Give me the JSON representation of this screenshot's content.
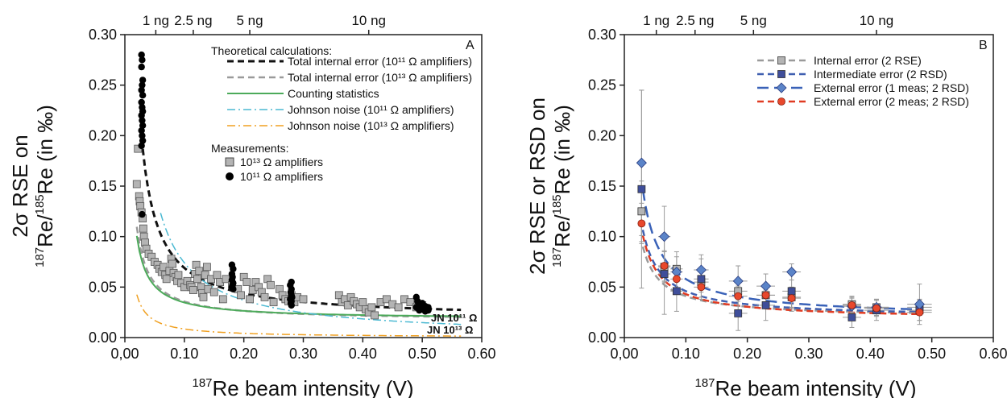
{
  "chart_data": [
    {
      "type": "scatter",
      "panel_label": "A",
      "xlabel_sup": "187",
      "xlabel_main": "Re beam intensity (V)",
      "ylabel_line1": "2σ RSE on",
      "ylabel_sup1": "187",
      "ylabel_mid": "Re/",
      "ylabel_sup2": "185",
      "ylabel_end": "Re (in ‰)",
      "xlim": [
        0,
        0.6
      ],
      "ylim": [
        0,
        0.3
      ],
      "x_ticks": [
        "0,00",
        "0.10",
        "0.20",
        "0.30",
        "0.40",
        "0.50",
        "0.60"
      ],
      "x_tick_values": [
        0,
        0.1,
        0.2,
        0.3,
        0.4,
        0.5,
        0.6
      ],
      "y_ticks": [
        "0.00",
        "0.05",
        "0.10",
        "0.15",
        "0.20",
        "0.25",
        "0.30"
      ],
      "y_tick_values": [
        0,
        0.05,
        0.1,
        0.15,
        0.2,
        0.25,
        0.3
      ],
      "top_axis": {
        "labels": [
          "1 ng",
          "2.5 ng",
          "5 ng",
          "10 ng"
        ],
        "positions": [
          0.052,
          0.115,
          0.21,
          0.41
        ]
      },
      "legend_theory_title": "Theoretical calculations:",
      "legend_measure_title": "Measurements:",
      "curves": [
        {
          "name": "Total internal error (10¹¹ Ω amplifiers)",
          "color": "#111111",
          "dash": "8,5",
          "width": 3,
          "k": 0.00505,
          "c": 0.0185,
          "x_start": 0.03,
          "x_end": 0.565
        },
        {
          "name": "Total internal error (10¹³ Ω amplifiers)",
          "color": "#9a9a9a",
          "dash": "8,5",
          "width": 2.5,
          "k": 0.00185,
          "c": 0.0172,
          "x_start": 0.02,
          "x_end": 0.565
        },
        {
          "name": "Counting statistics",
          "color": "#4caa5a",
          "dash": "",
          "width": 2,
          "k": 0.00165,
          "c": 0.0182,
          "x_start": 0.02,
          "x_end": 0.565
        },
        {
          "name": "Johnson noise (10¹¹ Ω amplifiers)",
          "color": "#4bb9d2",
          "dash": "10,4,2,4",
          "width": 1.5,
          "k": 0.0074,
          "c": 0.0,
          "x_start": 0.06,
          "x_end": 0.565
        },
        {
          "name": "Johnson noise (10¹³ Ω amplifiers)",
          "color": "#f0a020",
          "dash": "10,4,2,4",
          "width": 1.5,
          "k": 0.00085,
          "c": 0.0,
          "x_start": 0.02,
          "x_end": 0.565
        }
      ],
      "curve_labels": [
        {
          "text": "JN 10¹¹ Ω",
          "color": "#4bb9d2"
        },
        {
          "text": "JN 10¹³ Ω",
          "color": "#f0a020"
        }
      ],
      "series": [
        {
          "name": "10¹³ Ω amplifiers",
          "marker": "square",
          "color": "#b4b4b4",
          "points": [
            [
              0.02,
              0.152
            ],
            [
              0.022,
              0.187
            ],
            [
              0.024,
              0.14
            ],
            [
              0.025,
              0.135
            ],
            [
              0.026,
              0.13
            ],
            [
              0.028,
              0.124
            ],
            [
              0.03,
              0.118
            ],
            [
              0.031,
              0.108
            ],
            [
              0.032,
              0.1
            ],
            [
              0.034,
              0.094
            ],
            [
              0.036,
              0.088
            ],
            [
              0.04,
              0.083
            ],
            [
              0.045,
              0.08
            ],
            [
              0.05,
              0.075
            ],
            [
              0.055,
              0.072
            ],
            [
              0.058,
              0.068
            ],
            [
              0.062,
              0.065
            ],
            [
              0.065,
              0.07
            ],
            [
              0.068,
              0.062
            ],
            [
              0.07,
              0.058
            ],
            [
              0.075,
              0.066
            ],
            [
              0.078,
              0.078
            ],
            [
              0.08,
              0.073
            ],
            [
              0.082,
              0.064
            ],
            [
              0.085,
              0.06
            ],
            [
              0.088,
              0.056
            ],
            [
              0.09,
              0.062
            ],
            [
              0.095,
              0.054
            ],
            [
              0.1,
              0.05
            ],
            [
              0.105,
              0.056
            ],
            [
              0.11,
              0.052
            ],
            [
              0.112,
              0.05
            ],
            [
              0.115,
              0.047
            ],
            [
              0.118,
              0.063
            ],
            [
              0.12,
              0.072
            ],
            [
              0.122,
              0.058
            ],
            [
              0.125,
              0.066
            ],
            [
              0.128,
              0.05
            ],
            [
              0.13,
              0.044
            ],
            [
              0.132,
              0.04
            ],
            [
              0.135,
              0.062
            ],
            [
              0.138,
              0.07
            ],
            [
              0.14,
              0.048
            ],
            [
              0.145,
              0.058
            ],
            [
              0.15,
              0.045
            ],
            [
              0.155,
              0.062
            ],
            [
              0.16,
              0.055
            ],
            [
              0.165,
              0.038
            ],
            [
              0.17,
              0.058
            ],
            [
              0.18,
              0.052
            ],
            [
              0.19,
              0.048
            ],
            [
              0.195,
              0.042
            ],
            [
              0.2,
              0.06
            ],
            [
              0.205,
              0.055
            ],
            [
              0.21,
              0.038
            ],
            [
              0.215,
              0.047
            ],
            [
              0.22,
              0.055
            ],
            [
              0.225,
              0.05
            ],
            [
              0.23,
              0.045
            ],
            [
              0.235,
              0.04
            ],
            [
              0.24,
              0.058
            ],
            [
              0.245,
              0.052
            ],
            [
              0.25,
              0.035
            ],
            [
              0.26,
              0.048
            ],
            [
              0.265,
              0.042
            ],
            [
              0.27,
              0.038
            ],
            [
              0.275,
              0.036
            ],
            [
              0.28,
              0.042
            ],
            [
              0.285,
              0.035
            ],
            [
              0.29,
              0.04
            ],
            [
              0.3,
              0.038
            ],
            [
              0.36,
              0.042
            ],
            [
              0.365,
              0.035
            ],
            [
              0.37,
              0.038
            ],
            [
              0.375,
              0.032
            ],
            [
              0.38,
              0.04
            ],
            [
              0.385,
              0.036
            ],
            [
              0.39,
              0.033
            ],
            [
              0.395,
              0.03
            ],
            [
              0.4,
              0.035
            ],
            [
              0.405,
              0.028
            ],
            [
              0.41,
              0.025
            ],
            [
              0.415,
              0.03
            ],
            [
              0.42,
              0.022
            ],
            [
              0.43,
              0.035
            ],
            [
              0.44,
              0.038
            ],
            [
              0.45,
              0.033
            ],
            [
              0.46,
              0.03
            ],
            [
              0.47,
              0.038
            ],
            [
              0.48,
              0.035
            ],
            [
              0.49,
              0.03
            ],
            [
              0.5,
              0.032
            ]
          ]
        },
        {
          "name": "10¹¹ Ω amplifiers",
          "marker": "circle",
          "color": "#000000",
          "points": [
            [
              0.028,
              0.28
            ],
            [
              0.029,
              0.275
            ],
            [
              0.028,
              0.268
            ],
            [
              0.03,
              0.255
            ],
            [
              0.029,
              0.25
            ],
            [
              0.028,
              0.245
            ],
            [
              0.03,
              0.24
            ],
            [
              0.028,
              0.233
            ],
            [
              0.029,
              0.228
            ],
            [
              0.03,
              0.224
            ],
            [
              0.028,
              0.22
            ],
            [
              0.029,
              0.215
            ],
            [
              0.03,
              0.21
            ],
            [
              0.028,
              0.205
            ],
            [
              0.029,
              0.2
            ],
            [
              0.03,
              0.195
            ],
            [
              0.028,
              0.19
            ],
            [
              0.029,
              0.122
            ],
            [
              0.18,
              0.072
            ],
            [
              0.182,
              0.068
            ],
            [
              0.18,
              0.063
            ],
            [
              0.181,
              0.06
            ],
            [
              0.18,
              0.057
            ],
            [
              0.182,
              0.054
            ],
            [
              0.181,
              0.052
            ],
            [
              0.18,
              0.05
            ],
            [
              0.182,
              0.048
            ],
            [
              0.28,
              0.055
            ],
            [
              0.278,
              0.052
            ],
            [
              0.28,
              0.048
            ],
            [
              0.279,
              0.045
            ],
            [
              0.28,
              0.042
            ],
            [
              0.281,
              0.04
            ],
            [
              0.278,
              0.038
            ],
            [
              0.28,
              0.036
            ],
            [
              0.279,
              0.034
            ],
            [
              0.28,
              0.032
            ],
            [
              0.49,
              0.04
            ],
            [
              0.492,
              0.036
            ],
            [
              0.495,
              0.033
            ],
            [
              0.49,
              0.03
            ],
            [
              0.5,
              0.034
            ],
            [
              0.505,
              0.031
            ],
            [
              0.5,
              0.028
            ],
            [
              0.495,
              0.027
            ],
            [
              0.505,
              0.026
            ],
            [
              0.51,
              0.03
            ],
            [
              0.51,
              0.027
            ]
          ]
        }
      ]
    },
    {
      "type": "scatter",
      "panel_label": "B",
      "xlabel_sup": "187",
      "xlabel_main": "Re beam intensity (V)",
      "ylabel_line1": "2σ RSE or RSD on",
      "ylabel_sup1": "187",
      "ylabel_mid": "Re/",
      "ylabel_sup2": "185",
      "ylabel_end": "Re (in ‰)",
      "xlim": [
        0,
        0.6
      ],
      "ylim": [
        0,
        0.3
      ],
      "x_ticks": [
        "0,00",
        "0.10",
        "0.20",
        "0.30",
        "0.40",
        "0.50",
        "0.60"
      ],
      "x_tick_values": [
        0,
        0.1,
        0.2,
        0.3,
        0.4,
        0.5,
        0.6
      ],
      "y_ticks": [
        "0.00",
        "0.05",
        "0.10",
        "0.15",
        "0.20",
        "0.25",
        "0.30"
      ],
      "y_tick_values": [
        0,
        0.05,
        0.1,
        0.15,
        0.2,
        0.25,
        0.3
      ],
      "top_axis": {
        "labels": [
          "1 ng",
          "2.5 ng",
          "5 ng",
          "10 ng"
        ],
        "positions": [
          0.052,
          0.115,
          0.21,
          0.41
        ]
      },
      "series": [
        {
          "name": "Internal error (2 RSE)",
          "marker": "square",
          "color": "#b4b4b4",
          "line_color": "#9a9a9a",
          "fit": {
            "k": 0.0021,
            "c": 0.02
          },
          "points": [
            [
              0.028,
              0.125
            ],
            [
              0.065,
              0.07
            ],
            [
              0.085,
              0.068
            ],
            [
              0.125,
              0.055
            ],
            [
              0.185,
              0.046
            ],
            [
              0.23,
              0.042
            ],
            [
              0.272,
              0.04
            ],
            [
              0.37,
              0.033
            ],
            [
              0.41,
              0.03
            ],
            [
              0.48,
              0.03
            ]
          ],
          "xerr": [
            0.004,
            0.01,
            0.01,
            0.012,
            0.015,
            0.015,
            0.015,
            0.015,
            0.02,
            0.02
          ],
          "yerr": [
            0.03,
            0.015,
            0.012,
            0.01,
            0.01,
            0.01,
            0.01,
            0.008,
            0.008,
            0.008
          ]
        },
        {
          "name": "Intermediate error (2 RSD)",
          "marker": "square",
          "color": "#3f4e9a",
          "line_color": "#3f5fb0",
          "fit": {
            "k": 0.0026,
            "c": 0.02
          },
          "points": [
            [
              0.028,
              0.147
            ],
            [
              0.065,
              0.063
            ],
            [
              0.085,
              0.046
            ],
            [
              0.125,
              0.058
            ],
            [
              0.185,
              0.024
            ],
            [
              0.23,
              0.032
            ],
            [
              0.272,
              0.046
            ],
            [
              0.37,
              0.02
            ],
            [
              0.41,
              0.027
            ],
            [
              0.48,
              0.027
            ]
          ],
          "xerr": [
            0.004,
            0.01,
            0.01,
            0.012,
            0.015,
            0.015,
            0.015,
            0.015,
            0.02,
            0.02
          ],
          "yerr": [
            0.098,
            0.04,
            0.02,
            0.02,
            0.017,
            0.015,
            0.02,
            0.01,
            0.01,
            0.01
          ]
        },
        {
          "name": "External error (1 meas; 2 RSD)",
          "marker": "diamond",
          "color": "#5b84c8",
          "line_color": "#3a62b8",
          "fit": {
            "k": 0.0038,
            "c": 0.02
          },
          "points": [
            [
              0.028,
              0.173
            ],
            [
              0.065,
              0.1
            ],
            [
              0.085,
              0.065
            ],
            [
              0.125,
              0.067
            ],
            [
              0.185,
              0.056
            ],
            [
              0.23,
              0.051
            ],
            [
              0.272,
              0.065
            ],
            [
              0.37,
              0.031
            ],
            [
              0.41,
              0.03
            ],
            [
              0.48,
              0.033
            ]
          ],
          "xerr": [
            0.004,
            0.01,
            0.01,
            0.012,
            0.015,
            0.015,
            0.015,
            0.015,
            0.02,
            0.02
          ],
          "yerr": [
            0.072,
            0.03,
            0.02,
            0.015,
            0.015,
            0.012,
            0.008,
            0.008,
            0.008,
            0.02
          ]
        },
        {
          "name": "External error (2 meas; 2 RSD)",
          "marker": "circle",
          "color": "#e8482c",
          "line_color": "#e03b22",
          "fit": {
            "k": 0.0025,
            "c": 0.018
          },
          "points": [
            [
              0.028,
              0.113
            ],
            [
              0.065,
              0.071
            ],
            [
              0.085,
              0.058
            ],
            [
              0.125,
              0.05
            ],
            [
              0.185,
              0.041
            ],
            [
              0.23,
              0.042
            ],
            [
              0.272,
              0.039
            ],
            [
              0.37,
              0.032
            ],
            [
              0.41,
              0.029
            ],
            [
              0.48,
              0.025
            ]
          ],
          "xerr": [
            0.004,
            0.01,
            0.01,
            0.012,
            0.015,
            0.015,
            0.015,
            0.015,
            0.02,
            0.02
          ],
          "yerr": [
            0.02,
            0.015,
            0.012,
            0.01,
            0.01,
            0.01,
            0.01,
            0.008,
            0.008,
            0.008
          ]
        }
      ]
    }
  ]
}
